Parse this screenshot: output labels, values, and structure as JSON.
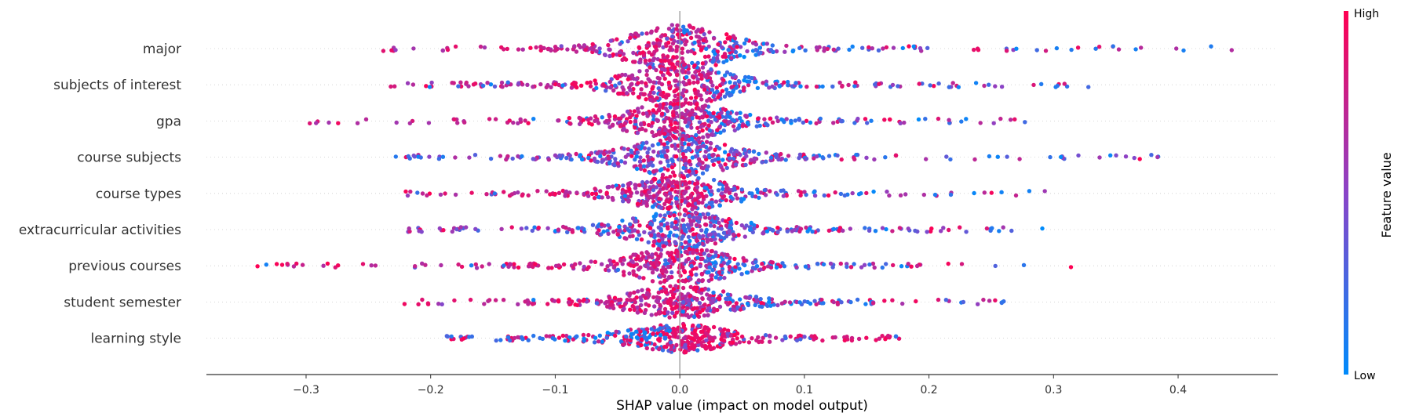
{
  "chart_data": {
    "type": "scatter",
    "subtype": "shap-beeswarm-summary",
    "xlabel": "SHAP value (impact on model output)",
    "xlim": [
      -0.38,
      0.48
    ],
    "xticks": [
      -0.3,
      -0.2,
      -0.1,
      0.0,
      0.1,
      0.2,
      0.3,
      0.4
    ],
    "xtick_labels": [
      "−0.3",
      "−0.2",
      "−0.1",
      "0.0",
      "0.1",
      "0.2",
      "0.3",
      "0.4"
    ],
    "features": [
      {
        "name": "major",
        "min": -0.238,
        "max": 0.443,
        "low_side": "right",
        "spread": 1.25
      },
      {
        "name": "subjects of interest",
        "min": -0.232,
        "max": 0.328,
        "low_side": "right",
        "spread": 1.1
      },
      {
        "name": "gpa",
        "min": -0.297,
        "max": 0.277,
        "low_side": "right",
        "spread": 0.95
      },
      {
        "name": "course subjects",
        "min": -0.228,
        "max": 0.384,
        "low_side": "mixed",
        "spread": 1.0
      },
      {
        "name": "course types",
        "min": -0.22,
        "max": 0.293,
        "low_side": "right",
        "spread": 0.9
      },
      {
        "name": "extracurricular activities",
        "min": -0.218,
        "max": 0.291,
        "low_side": "mixed",
        "spread": 0.95
      },
      {
        "name": "previous courses",
        "min": -0.339,
        "max": 0.314,
        "low_side": "right",
        "spread": 0.95
      },
      {
        "name": "student semester",
        "min": -0.221,
        "max": 0.26,
        "low_side": "right",
        "spread": 0.8
      },
      {
        "name": "learning style",
        "min": -0.187,
        "max": 0.176,
        "low_side": "left",
        "spread": 0.7
      }
    ],
    "colorbar": {
      "title": "Feature value",
      "high_label": "High",
      "low_label": "Low",
      "high_color": "#ff0052",
      "low_color": "#008bfb"
    },
    "grid": false,
    "zero_line": true
  }
}
